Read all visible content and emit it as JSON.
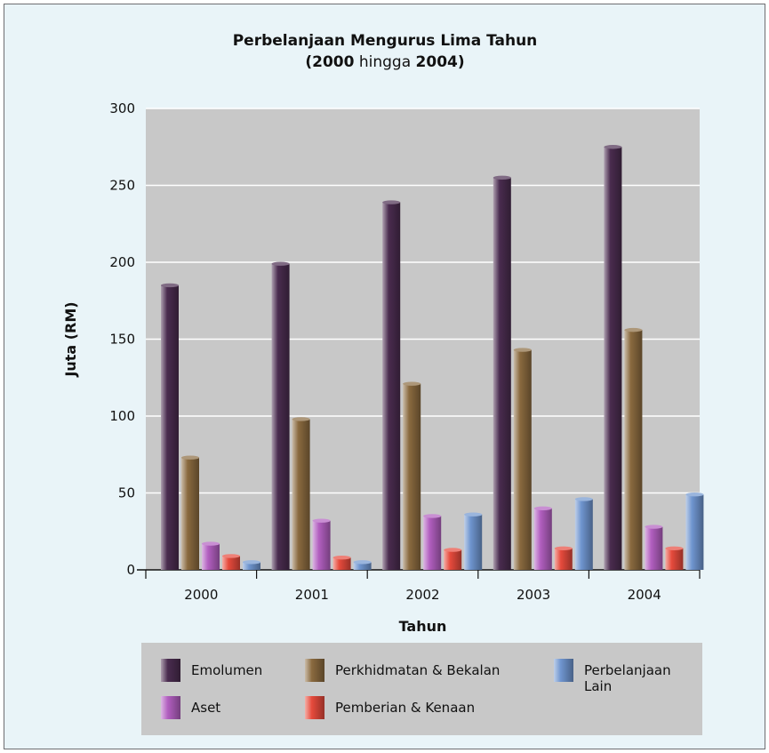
{
  "chart_data": {
    "type": "bar",
    "title": "Perbelanjaan Mengurus Lima Tahun",
    "subtitle": {
      "parts": [
        {
          "text": "(",
          "bold": true
        },
        {
          "text": "2000",
          "bold": true
        },
        {
          "text": " hingga ",
          "bold": false
        },
        {
          "text": "2004",
          "bold": true
        },
        {
          "text": ")",
          "bold": true
        }
      ]
    },
    "xlabel": "Tahun",
    "ylabel": "Juta (RM)",
    "ylim": [
      0,
      300
    ],
    "yticks": [
      0,
      50,
      100,
      150,
      200,
      250,
      300
    ],
    "grid": true,
    "legend_position": "bottom",
    "categories": [
      "2000",
      "2001",
      "2002",
      "2003",
      "2004"
    ],
    "series": [
      {
        "name": "Emolumen",
        "color": "#4a2c4f",
        "values": [
          185,
          199,
          239,
          255,
          275
        ]
      },
      {
        "name": "Perkhidmatan & Bekalan",
        "color": "#8a6a3f",
        "values": [
          73,
          98,
          121,
          143,
          156
        ]
      },
      {
        "name": "Aset",
        "color": "#b25fc0",
        "values": [
          17,
          32,
          35,
          40,
          28
        ]
      },
      {
        "name": "Pemberian & Kenaan",
        "color": "#e64a3c",
        "values": [
          9,
          8,
          13,
          14,
          14
        ]
      },
      {
        "name": "Perbelanjaan Lain",
        "color": "#6f95cf",
        "values": [
          5,
          5,
          36,
          46,
          49
        ]
      }
    ],
    "legend_layout": [
      {
        "series": 0,
        "lines": [
          "Emolumen"
        ]
      },
      {
        "series": 1,
        "lines": [
          "Perkhidmatan & Bekalan"
        ]
      },
      {
        "series": 4,
        "lines": [
          "Perbelanjaan",
          "Lain"
        ]
      },
      {
        "series": 2,
        "lines": [
          "Aset"
        ]
      },
      {
        "series": 3,
        "lines": [
          "Pemberian & Kenaan"
        ]
      }
    ]
  },
  "colors": {
    "frame_background": "#e9f4f8",
    "frame_border": "#6d6e71",
    "plot_background": "#c8c8c8",
    "gridline": "#ffffff",
    "legend_background": "#c8c8c8",
    "axis": "#111111"
  }
}
